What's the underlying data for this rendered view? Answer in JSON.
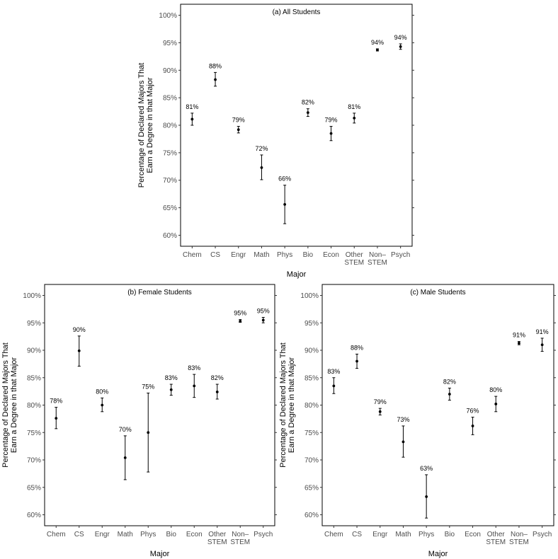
{
  "chart_data": [
    {
      "type": "scatter",
      "title": "(a) All Students",
      "xlabel": "Major",
      "ylabel": [
        "Percentage of Declared Majors That",
        "Earn a Degree in that Major"
      ],
      "ylim": [
        58,
        102
      ],
      "yticks": [
        60,
        65,
        70,
        75,
        80,
        85,
        90,
        95,
        100
      ],
      "ytick_labels": [
        "60%",
        "65%",
        "70%",
        "75%",
        "80%",
        "85%",
        "90%",
        "95%",
        "100%"
      ],
      "categories": [
        [
          "Chem"
        ],
        [
          "CS"
        ],
        [
          "Engr"
        ],
        [
          "Math"
        ],
        [
          "Phys"
        ],
        [
          "Bio"
        ],
        [
          "Econ"
        ],
        [
          "Other",
          "STEM"
        ],
        [
          "Non–",
          "STEM"
        ],
        [
          "Psych"
        ]
      ],
      "values": [
        81.1,
        88.3,
        79.2,
        72.3,
        65.6,
        82.3,
        78.5,
        81.3,
        93.7,
        94.3
      ],
      "lower": [
        80.0,
        87.1,
        78.6,
        70.1,
        62.1,
        81.6,
        77.2,
        80.4,
        93.5,
        93.8
      ],
      "upper": [
        82.2,
        89.6,
        79.8,
        74.6,
        69.1,
        83.0,
        79.8,
        82.2,
        93.9,
        94.8
      ],
      "labels": [
        "81%",
        "88%",
        "79%",
        "72%",
        "66%",
        "82%",
        "79%",
        "81%",
        "94%",
        "94%"
      ],
      "grid": false
    },
    {
      "type": "scatter",
      "title": "(b) Female Students",
      "xlabel": "Major",
      "ylabel": [
        "Percentage of Declared Majors That",
        "Earn a Degree in that Major"
      ],
      "ylim": [
        58,
        102
      ],
      "yticks": [
        60,
        65,
        70,
        75,
        80,
        85,
        90,
        95,
        100
      ],
      "ytick_labels": [
        "60%",
        "65%",
        "70%",
        "75%",
        "80%",
        "85%",
        "90%",
        "95%",
        "100%"
      ],
      "categories": [
        [
          "Chem"
        ],
        [
          "CS"
        ],
        [
          "Engr"
        ],
        [
          "Math"
        ],
        [
          "Phys"
        ],
        [
          "Bio"
        ],
        [
          "Econ"
        ],
        [
          "Other",
          "STEM"
        ],
        [
          "Non–",
          "STEM"
        ],
        [
          "Psych"
        ]
      ],
      "values": [
        77.6,
        89.9,
        80.0,
        70.4,
        75.0,
        82.8,
        83.5,
        82.4,
        95.3,
        95.5
      ],
      "lower": [
        75.7,
        87.1,
        78.8,
        66.4,
        67.8,
        81.8,
        81.4,
        81.1,
        95.1,
        95.0
      ],
      "upper": [
        79.6,
        92.6,
        81.3,
        74.4,
        82.2,
        83.8,
        85.6,
        83.8,
        95.6,
        96.0
      ],
      "labels": [
        "78%",
        "90%",
        "80%",
        "70%",
        "75%",
        "83%",
        "83%",
        "82%",
        "95%",
        "95%"
      ],
      "grid": false
    },
    {
      "type": "scatter",
      "title": "(c) Male Students",
      "xlabel": "Major",
      "ylabel": [
        "Percentage of Declared Majors That",
        "Earn a Degree in that Major"
      ],
      "ylim": [
        58,
        102
      ],
      "yticks": [
        60,
        65,
        70,
        75,
        80,
        85,
        90,
        95,
        100
      ],
      "ytick_labels": [
        "60%",
        "65%",
        "70%",
        "75%",
        "80%",
        "85%",
        "90%",
        "95%",
        "100%"
      ],
      "categories": [
        [
          "Chem"
        ],
        [
          "CS"
        ],
        [
          "Engr"
        ],
        [
          "Math"
        ],
        [
          "Phys"
        ],
        [
          "Bio"
        ],
        [
          "Econ"
        ],
        [
          "Other",
          "STEM"
        ],
        [
          "Non–",
          "STEM"
        ],
        [
          "Psych"
        ]
      ],
      "values": [
        83.5,
        88.0,
        78.8,
        73.3,
        63.3,
        82.0,
        76.2,
        80.2,
        91.3,
        91.0
      ],
      "lower": [
        82.1,
        86.7,
        78.2,
        70.5,
        59.4,
        80.9,
        74.6,
        78.8,
        91.0,
        89.8
      ],
      "upper": [
        85.0,
        89.3,
        79.4,
        76.2,
        67.3,
        83.1,
        77.8,
        81.6,
        91.6,
        92.2
      ],
      "labels": [
        "83%",
        "88%",
        "79%",
        "73%",
        "63%",
        "82%",
        "76%",
        "80%",
        "91%",
        "91%"
      ],
      "grid": false
    }
  ]
}
